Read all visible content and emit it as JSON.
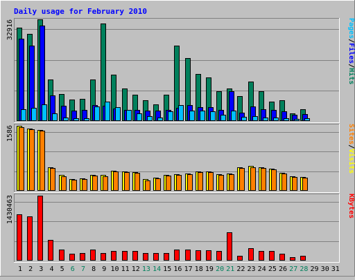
{
  "chart_data": {
    "type": "bar",
    "title": "Daily usage for February 2010",
    "days": [
      "1",
      "2",
      "3",
      "4",
      "5",
      "6",
      "7",
      "8",
      "9",
      "10",
      "11",
      "12",
      "13",
      "14",
      "15",
      "16",
      "17",
      "18",
      "19",
      "20",
      "21",
      "22",
      "23",
      "24",
      "25",
      "26",
      "27",
      "28",
      "29",
      "30",
      "31"
    ],
    "weekend_days": [
      "6",
      "7",
      "13",
      "14",
      "20",
      "21",
      "27",
      "28"
    ],
    "panels": [
      {
        "id": "hits_files_pages",
        "y_max_label": "32916",
        "y_max": 32916,
        "series": [
          {
            "name": "Hits",
            "color": "#00805C",
            "values": [
              30500,
              28500,
              33200,
              13600,
              8700,
              7000,
              7200,
              13600,
              31800,
              15100,
              10500,
              8500,
              6800,
              5400,
              8600,
              24500,
              20500,
              15300,
              14300,
              9800,
              10500,
              8100,
              12900,
              9700,
              6400,
              6800,
              2400,
              3900,
              0,
              0,
              0
            ]
          },
          {
            "name": "Files",
            "color": "#0000FF",
            "values": [
              26800,
              24500,
              31000,
              8400,
              4900,
              3300,
              3500,
              5200,
              5000,
              4000,
              3700,
              3600,
              3400,
              3400,
              3700,
              4200,
              5200,
              4600,
              4500,
              3600,
              9800,
              2800,
              4800,
              3900,
              3600,
              3100,
              2100,
              2200,
              0,
              0,
              0
            ]
          },
          {
            "name": "Pages",
            "color": "#00C0FF",
            "values": [
              3800,
              4300,
              5500,
              2400,
              1200,
              1000,
              1000,
              4800,
              6200,
              4500,
              3500,
              2500,
              1500,
              1200,
              3200,
              5200,
              3300,
              3400,
              3200,
              2100,
              3300,
              1400,
              1500,
              1200,
              1100,
              1000,
              700,
              900,
              0,
              0,
              0
            ]
          }
        ]
      },
      {
        "id": "visits_sites",
        "y_max_label": "1586",
        "y_max": 1586,
        "series": [
          {
            "name": "Visits",
            "color": "#FFFF00",
            "values": [
              1586,
              1520,
              1480,
              580,
              380,
              290,
              300,
              390,
              380,
              490,
              470,
              460,
              280,
              320,
              390,
              400,
              420,
              480,
              480,
              410,
              420,
              580,
              600,
              580,
              540,
              440,
              360,
              340,
              0,
              0,
              0
            ]
          },
          {
            "name": "Sites",
            "color": "#FF8000",
            "values": [
              1560,
              1500,
              1460,
              560,
              360,
              270,
              280,
              370,
              360,
              470,
              450,
              440,
              260,
              300,
              370,
              380,
              400,
              460,
              460,
              390,
              400,
              560,
              580,
              560,
              520,
              420,
              340,
              320,
              0,
              0,
              0
            ]
          }
        ]
      },
      {
        "id": "kbytes",
        "y_max_label": "1430463",
        "y_max": 1430463,
        "series": [
          {
            "name": "KBytes",
            "color": "#FF0000",
            "values": [
              1020000,
              980000,
              1430463,
              460000,
              250000,
              150000,
              170000,
              250000,
              170000,
              220000,
              210000,
              210000,
              160000,
              160000,
              170000,
              240000,
              250000,
              230000,
              230000,
              210000,
              620000,
              110000,
              280000,
              210000,
              210000,
              150000,
              70000,
              110000,
              0,
              0,
              0
            ]
          }
        ]
      }
    ],
    "right_labels": [
      {
        "parts": [
          {
            "text": "Pages",
            "color": "#00C0FF"
          },
          {
            "text": "/",
            "color": "#000000"
          },
          {
            "text": "Files",
            "color": "#0000FF"
          },
          {
            "text": "/",
            "color": "#000000"
          },
          {
            "text": "Hits",
            "color": "#00805C"
          }
        ]
      },
      {
        "parts": [
          {
            "text": "Sites",
            "color": "#FF8000"
          },
          {
            "text": "/",
            "color": "#000000"
          },
          {
            "text": "Visits",
            "color": "#FFFF00"
          }
        ]
      },
      {
        "parts": [
          {
            "text": "KBytes",
            "color": "#FF0000"
          }
        ]
      }
    ],
    "colors": {
      "background": "#C0C0C0",
      "title": "#0000FF",
      "weekday_label": "#000000",
      "weekend_label": "#00805C",
      "grid": "#808080"
    }
  }
}
